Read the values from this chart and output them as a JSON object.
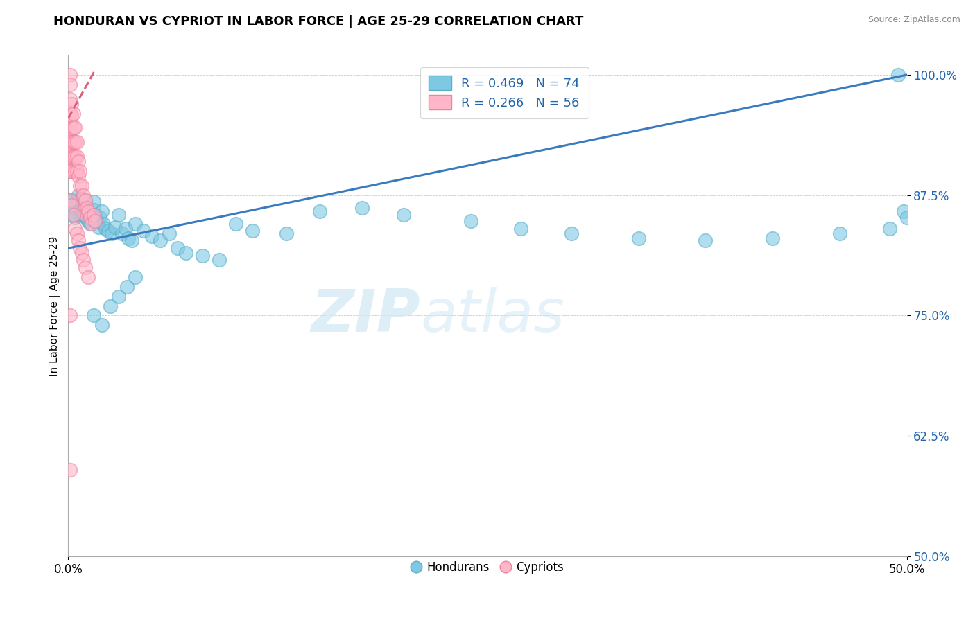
{
  "title": "HONDURAN VS CYPRIOT IN LABOR FORCE | AGE 25-29 CORRELATION CHART",
  "source_text": "Source: ZipAtlas.com",
  "ylabel": "In Labor Force | Age 25-29",
  "x_min": 0.0,
  "x_max": 0.5,
  "y_min": 0.5,
  "y_max": 1.02,
  "x_ticks": [
    0.0,
    0.5
  ],
  "x_tick_labels": [
    "0.0%",
    "50.0%"
  ],
  "y_ticks": [
    0.5,
    0.625,
    0.75,
    0.875,
    1.0
  ],
  "y_tick_labels": [
    "50.0%",
    "62.5%",
    "75.0%",
    "87.5%",
    "100.0%"
  ],
  "blue_R": 0.469,
  "blue_N": 74,
  "pink_R": 0.266,
  "pink_N": 56,
  "blue_color": "#7ec8e3",
  "pink_color": "#ffb6c8",
  "blue_edge_color": "#5aafc8",
  "pink_edge_color": "#f080a0",
  "blue_line_color": "#3a7abf",
  "pink_line_color": "#d95f7a",
  "legend_blue_label": "Hondurans",
  "legend_pink_label": "Cypriots",
  "watermark_color": "#d0e8f5",
  "blue_line_x0": 0.0,
  "blue_line_y0": 0.82,
  "blue_line_x1": 0.5,
  "blue_line_y1": 1.0,
  "pink_line_x0": 0.0,
  "pink_line_y0": 0.955,
  "pink_line_x1": 0.016,
  "pink_line_y1": 1.005,
  "blue_dots_x": [
    0.001,
    0.002,
    0.003,
    0.003,
    0.004,
    0.004,
    0.005,
    0.005,
    0.006,
    0.006,
    0.007,
    0.007,
    0.008,
    0.008,
    0.009,
    0.009,
    0.01,
    0.01,
    0.011,
    0.011,
    0.012,
    0.012,
    0.013,
    0.013,
    0.014,
    0.015,
    0.015,
    0.016,
    0.017,
    0.018,
    0.019,
    0.02,
    0.021,
    0.022,
    0.024,
    0.026,
    0.028,
    0.03,
    0.032,
    0.034,
    0.036,
    0.038,
    0.04,
    0.045,
    0.05,
    0.055,
    0.06,
    0.065,
    0.07,
    0.08,
    0.09,
    0.1,
    0.11,
    0.13,
    0.15,
    0.175,
    0.2,
    0.24,
    0.27,
    0.3,
    0.34,
    0.38,
    0.42,
    0.46,
    0.49,
    0.495,
    0.498,
    0.5,
    0.015,
    0.02,
    0.025,
    0.03,
    0.035,
    0.04
  ],
  "blue_dots_y": [
    0.87,
    0.868,
    0.862,
    0.858,
    0.855,
    0.852,
    0.87,
    0.865,
    0.875,
    0.868,
    0.86,
    0.855,
    0.865,
    0.858,
    0.862,
    0.855,
    0.87,
    0.862,
    0.858,
    0.85,
    0.855,
    0.848,
    0.852,
    0.845,
    0.85,
    0.868,
    0.86,
    0.855,
    0.848,
    0.842,
    0.852,
    0.858,
    0.845,
    0.84,
    0.838,
    0.835,
    0.842,
    0.855,
    0.835,
    0.84,
    0.83,
    0.828,
    0.845,
    0.838,
    0.832,
    0.828,
    0.835,
    0.82,
    0.815,
    0.812,
    0.808,
    0.845,
    0.838,
    0.835,
    0.858,
    0.862,
    0.855,
    0.848,
    0.84,
    0.835,
    0.83,
    0.828,
    0.83,
    0.835,
    0.84,
    1.0,
    0.858,
    0.852,
    0.75,
    0.74,
    0.76,
    0.77,
    0.78,
    0.79
  ],
  "pink_dots_x": [
    0.001,
    0.001,
    0.001,
    0.001,
    0.001,
    0.001,
    0.001,
    0.001,
    0.001,
    0.001,
    0.002,
    0.002,
    0.002,
    0.002,
    0.002,
    0.002,
    0.003,
    0.003,
    0.003,
    0.003,
    0.004,
    0.004,
    0.004,
    0.004,
    0.005,
    0.005,
    0.005,
    0.006,
    0.006,
    0.007,
    0.007,
    0.008,
    0.008,
    0.009,
    0.009,
    0.01,
    0.01,
    0.011,
    0.012,
    0.013,
    0.014,
    0.015,
    0.016,
    0.001,
    0.002,
    0.003,
    0.004,
    0.005,
    0.006,
    0.007,
    0.008,
    0.009,
    0.01,
    0.012,
    0.001,
    0.001
  ],
  "pink_dots_y": [
    1.0,
    0.99,
    0.975,
    0.96,
    0.95,
    0.94,
    0.93,
    0.92,
    0.91,
    0.9,
    0.97,
    0.958,
    0.945,
    0.93,
    0.915,
    0.9,
    0.96,
    0.945,
    0.93,
    0.915,
    0.945,
    0.93,
    0.915,
    0.9,
    0.93,
    0.915,
    0.9,
    0.91,
    0.895,
    0.9,
    0.885,
    0.885,
    0.87,
    0.875,
    0.86,
    0.87,
    0.855,
    0.862,
    0.858,
    0.852,
    0.845,
    0.855,
    0.848,
    0.87,
    0.865,
    0.855,
    0.84,
    0.835,
    0.828,
    0.82,
    0.815,
    0.808,
    0.8,
    0.79,
    0.75,
    0.59
  ]
}
